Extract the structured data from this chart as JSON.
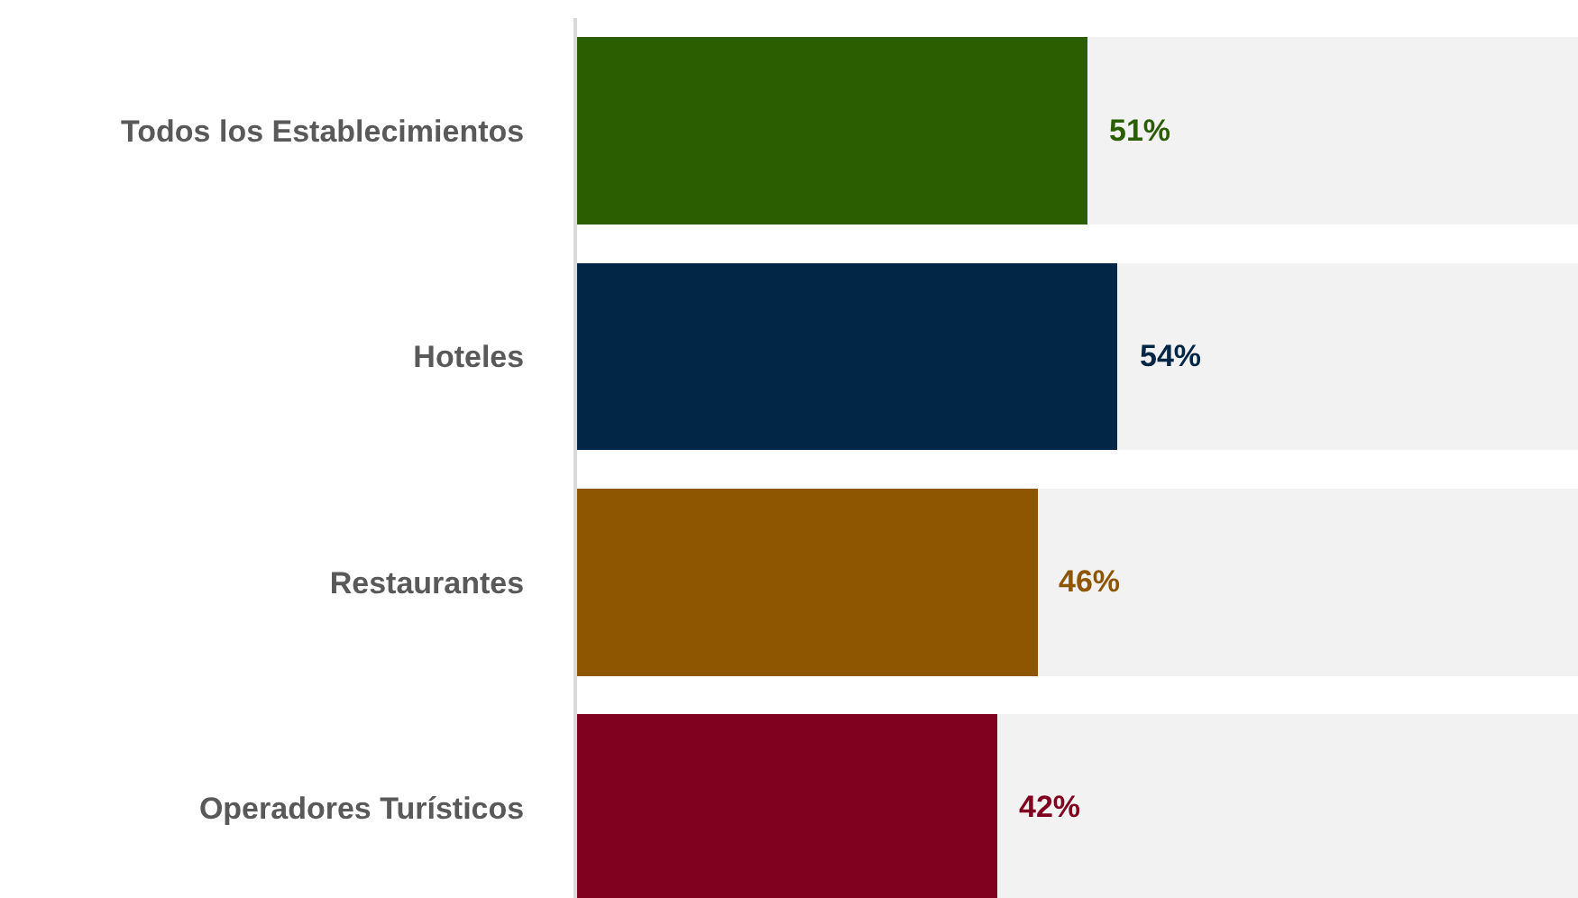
{
  "chart_data": {
    "type": "bar",
    "orientation": "horizontal",
    "stacked": true,
    "categories": [
      "Todos los Establecimientos",
      "Hoteles",
      "Restaurantes",
      "Operadores Turísticos"
    ],
    "series": [
      {
        "colors": [
          "#2a5e00",
          "#022645",
          "#8f5600",
          "#800020"
        ],
        "values": [
          51,
          54,
          46,
          42
        ],
        "value_labels": [
          "51%",
          "54%",
          "46%",
          "42%"
        ]
      },
      {
        "color": "#f2f2f2",
        "values": [
          49,
          46,
          54,
          58
        ]
      }
    ],
    "tick_labels": "y"
  }
}
